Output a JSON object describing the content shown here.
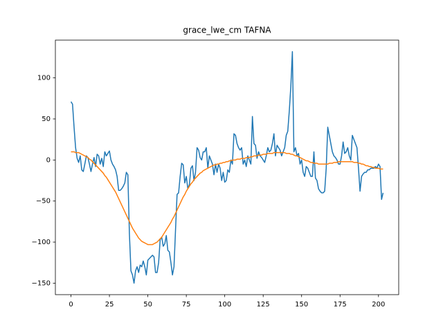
{
  "chart_data": {
    "type": "line",
    "title": "grace_lwe_cm TAFNA",
    "x": [
      0,
      1,
      2,
      3,
      4,
      5,
      6,
      7,
      8,
      9,
      10,
      11,
      12,
      13,
      14,
      15,
      16,
      17,
      18,
      19,
      20,
      21,
      22,
      23,
      24,
      25,
      26,
      27,
      28,
      29,
      30,
      31,
      32,
      33,
      34,
      35,
      36,
      37,
      38,
      39,
      40,
      41,
      42,
      43,
      44,
      45,
      46,
      47,
      48,
      49,
      50,
      51,
      52,
      53,
      54,
      55,
      56,
      57,
      58,
      59,
      60,
      61,
      62,
      63,
      64,
      65,
      66,
      67,
      68,
      69,
      70,
      71,
      72,
      73,
      74,
      75,
      76,
      77,
      78,
      79,
      80,
      81,
      82,
      83,
      84,
      85,
      86,
      87,
      88,
      89,
      90,
      91,
      92,
      93,
      94,
      95,
      96,
      97,
      98,
      99,
      100,
      101,
      102,
      103,
      104,
      105,
      106,
      107,
      108,
      109,
      110,
      111,
      112,
      113,
      114,
      115,
      116,
      117,
      118,
      119,
      120,
      121,
      122,
      123,
      124,
      125,
      126,
      127,
      128,
      129,
      130,
      131,
      132,
      133,
      134,
      135,
      136,
      137,
      138,
      139,
      140,
      141,
      142,
      143,
      144,
      145,
      146,
      147,
      148,
      149,
      150,
      151,
      152,
      153,
      154,
      155,
      156,
      157,
      158,
      159,
      160,
      161,
      162,
      163,
      164,
      165,
      166,
      167,
      168,
      169,
      170,
      171,
      172,
      173,
      174,
      175,
      176,
      177,
      178,
      179,
      180,
      181,
      182,
      183,
      184,
      185,
      186,
      187,
      188,
      189,
      190,
      191,
      192,
      193,
      194,
      195,
      196,
      197,
      198,
      199,
      200,
      201,
      202,
      203
    ],
    "series": [
      {
        "color": "#1f77b4",
        "values": [
          71,
          68,
          40,
          15,
          2,
          -3,
          5,
          -12,
          -14,
          -5,
          5,
          3,
          -5,
          -14,
          -5,
          3,
          -8,
          7,
          5,
          -5,
          2,
          -8,
          10,
          5,
          8,
          11,
          0,
          -5,
          -8,
          -12,
          -20,
          -37,
          -37,
          -35,
          -32,
          -28,
          -15,
          -18,
          -90,
          -135,
          -140,
          -150,
          -135,
          -130,
          -137,
          -128,
          -130,
          -123,
          -130,
          -140,
          -122,
          -120,
          -118,
          -116,
          -118,
          -137,
          -137,
          -125,
          -97,
          -94,
          -105,
          -102,
          -92,
          -110,
          -112,
          -125,
          -140,
          -130,
          -85,
          -42,
          -40,
          -20,
          -4,
          -6,
          -28,
          -20,
          -35,
          -30,
          -10,
          -7,
          -25,
          -15,
          15,
          12,
          3,
          0,
          10,
          10,
          15,
          -10,
          5,
          0,
          -5,
          -18,
          -5,
          -15,
          -5,
          -10,
          -25,
          -15,
          -27,
          -25,
          -12,
          -15,
          0,
          -5,
          32,
          30,
          20,
          15,
          12,
          15,
          -5,
          0,
          -8,
          5,
          0,
          -5,
          53,
          20,
          18,
          2,
          10,
          5,
          3,
          0,
          -3,
          5,
          15,
          10,
          12,
          20,
          32,
          5,
          18,
          15,
          12,
          5,
          10,
          15,
          30,
          35,
          60,
          90,
          132,
          10,
          15,
          5,
          8,
          -5,
          0,
          -15,
          -20,
          -8,
          -10,
          -15,
          -20,
          -20,
          10,
          -22,
          -25,
          -35,
          -38,
          -40,
          -40,
          -38,
          -10,
          40,
          30,
          20,
          10,
          5,
          3,
          0,
          -5,
          -5,
          5,
          22,
          8,
          10,
          15,
          5,
          0,
          30,
          25,
          20,
          15,
          -10,
          -38,
          -20,
          -17,
          -15,
          -15,
          -12,
          -12,
          -10,
          -10,
          -10,
          -8,
          -10,
          -5,
          -8,
          -48,
          -40
        ]
      },
      {
        "color": "#ff7f0e",
        "values": [
          10,
          10,
          10,
          9,
          9,
          9,
          8,
          7,
          6,
          5,
          4,
          3,
          1,
          0,
          -2,
          -4,
          -6,
          -8,
          -10,
          -12,
          -14,
          -16,
          -19,
          -21,
          -24,
          -27,
          -30,
          -33,
          -36,
          -39,
          -43,
          -47,
          -51,
          -55,
          -59,
          -63,
          -67,
          -71,
          -75,
          -79,
          -83,
          -86,
          -89,
          -92,
          -95,
          -97,
          -99,
          -100,
          -101,
          -102,
          -103,
          -103,
          -103,
          -103,
          -102,
          -101,
          -100,
          -98,
          -96,
          -94,
          -91,
          -88,
          -85,
          -82,
          -79,
          -76,
          -72,
          -69,
          -65,
          -61,
          -57,
          -53,
          -49,
          -45,
          -42,
          -38,
          -35,
          -32,
          -29,
          -27,
          -24,
          -22,
          -20,
          -18,
          -16,
          -15,
          -13,
          -12,
          -11,
          -10,
          -9,
          -8,
          -7,
          -6,
          -6,
          -5,
          -5,
          -4,
          -4,
          -3,
          -3,
          -2,
          -2,
          -1,
          -1,
          0,
          0,
          0,
          1,
          1,
          1,
          2,
          2,
          2,
          3,
          3,
          3,
          4,
          4,
          5,
          5,
          5,
          6,
          6,
          6,
          7,
          7,
          7,
          8,
          8,
          8,
          8,
          9,
          9,
          9,
          9,
          9,
          9,
          9,
          9,
          8,
          8,
          8,
          7,
          7,
          6,
          5,
          5,
          4,
          3,
          2,
          1,
          0,
          -1,
          -1,
          -2,
          -3,
          -3,
          -4,
          -4,
          -4,
          -5,
          -5,
          -5,
          -5,
          -5,
          -5,
          -5,
          -4,
          -4,
          -4,
          -3,
          -3,
          -3,
          -2,
          -2,
          -2,
          -2,
          -2,
          -2,
          -2,
          -2,
          -2,
          -2,
          -3,
          -3,
          -3,
          -4,
          -4,
          -5,
          -5,
          -6,
          -7,
          -7,
          -8,
          -8,
          -9,
          -9,
          -10,
          -10,
          -10,
          -11,
          -11,
          -11
        ]
      }
    ],
    "xlim": [
      -10.15,
      213.15
    ],
    "xticks": [
      0,
      25,
      50,
      75,
      100,
      125,
      150,
      175,
      200
    ],
    "ylim": [
      -164,
      146
    ],
    "yticks": [
      {
        "value": -150,
        "label": "−150"
      },
      {
        "value": -100,
        "label": "−100"
      },
      {
        "value": -50,
        "label": "−50"
      },
      0,
      50,
      100
    ]
  }
}
